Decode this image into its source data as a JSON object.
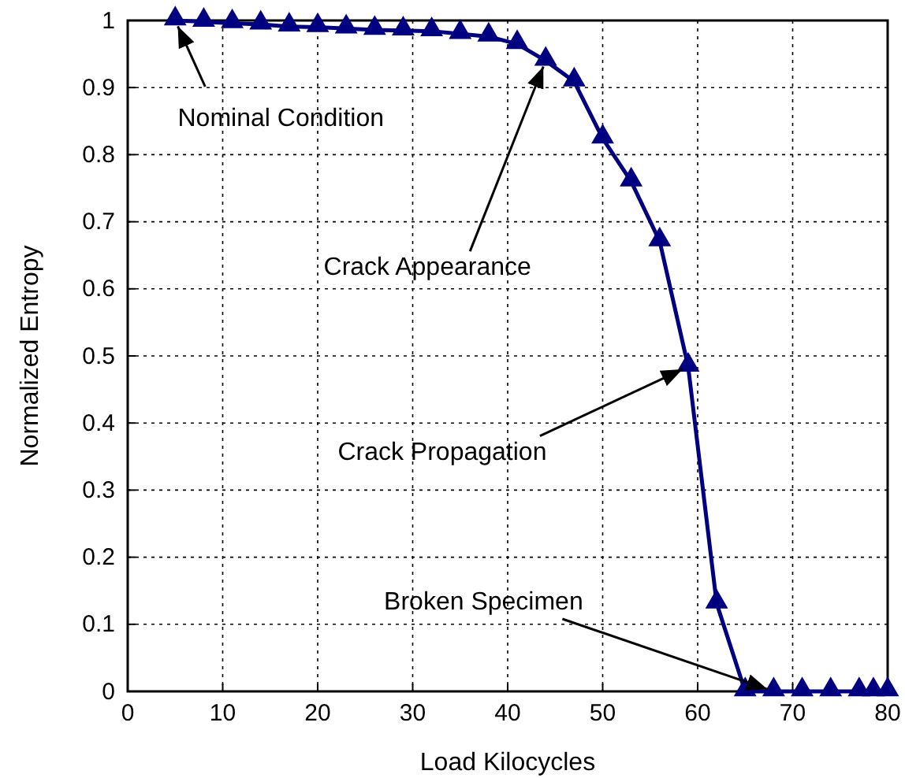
{
  "chart_data": {
    "type": "line",
    "xlabel": "Load Kilocycles",
    "ylabel": "Normalized Entropy",
    "x": [
      5,
      8,
      11,
      14,
      17,
      20,
      23,
      26,
      29,
      32,
      35,
      38,
      41,
      44,
      47,
      50,
      53,
      56,
      59,
      62,
      65,
      68,
      71,
      74,
      77,
      78.5,
      80
    ],
    "series": [
      {
        "color": "#000080",
        "values": [
          1.0,
          0.998,
          0.996,
          0.994,
          0.991,
          0.99,
          0.988,
          0.986,
          0.985,
          0.984,
          0.98,
          0.976,
          0.965,
          0.94,
          0.909,
          0.824,
          0.76,
          0.671,
          0.484,
          0.131,
          0,
          0,
          0,
          0,
          0,
          0,
          0
        ]
      }
    ],
    "xlim": [
      0,
      80
    ],
    "xticks": [
      0,
      10,
      20,
      30,
      40,
      50,
      60,
      70,
      80
    ],
    "ylim": [
      0,
      1
    ],
    "yticks": [
      0,
      0.1,
      0.2,
      0.3,
      0.4,
      0.5,
      0.6,
      0.7,
      0.8,
      0.9,
      1
    ],
    "grid": true,
    "marker": "triangle",
    "line_style": "solid",
    "annotations": [
      {
        "text": "Nominal Condition",
        "x": 5,
        "y": 1.0
      },
      {
        "text": "Crack Appearance",
        "x": 44,
        "y": 0.94
      },
      {
        "text": "Crack Propagation",
        "x": 59,
        "y": 0.484
      },
      {
        "text": "Broken Specimen",
        "x": 68,
        "y": 0
      }
    ]
  }
}
